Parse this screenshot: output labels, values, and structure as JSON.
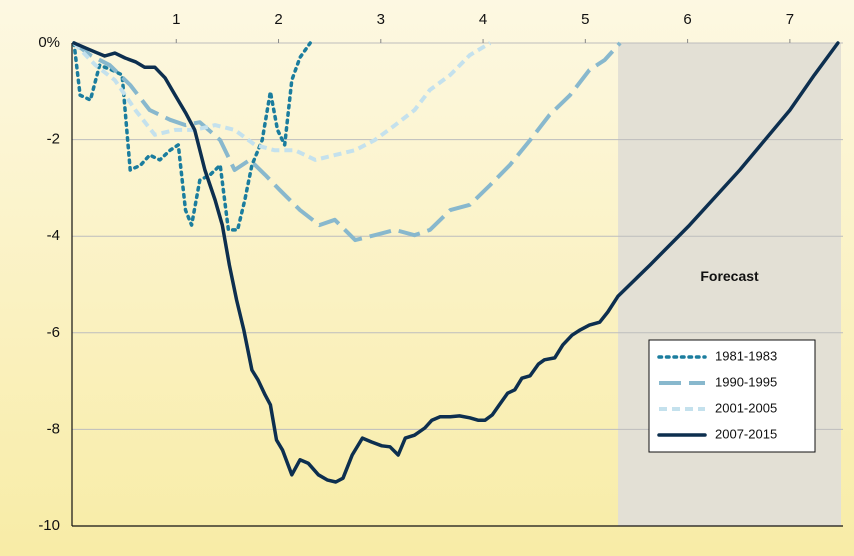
{
  "chart_data": {
    "type": "line",
    "xlim": [
      0,
      7.5
    ],
    "xticks": [
      1,
      2,
      3,
      4,
      5,
      6,
      7
    ],
    "ylim": [
      -10,
      0
    ],
    "yticks": [
      {
        "value": 0,
        "label": "0%"
      },
      -2,
      -4,
      -6,
      -8,
      -10
    ],
    "grid": true,
    "legend": "lower right",
    "forecast_label": "Forecast",
    "forecast_start": 5.32,
    "forecast_color": "#e3e0d5",
    "series": [
      {
        "name": "1981-1983",
        "color": "#1b7d9e",
        "style": "dotted",
        "x": [
          0,
          0.06,
          0.16,
          0.25,
          0.37,
          0.47,
          0.55,
          0.65,
          0.74,
          0.84,
          0.94,
          1.02,
          1.09,
          1.15,
          1.23,
          1.33,
          1.43,
          1.51,
          1.6,
          1.67,
          1.74,
          1.84,
          1.92,
          1.99,
          2.06,
          2.13,
          2.21,
          2.31
        ],
        "values": [
          0,
          -1.08,
          -1.18,
          -0.46,
          -0.56,
          -0.66,
          -2.63,
          -2.53,
          -2.32,
          -2.42,
          -2.22,
          -2.11,
          -3.46,
          -3.77,
          -2.84,
          -2.73,
          -2.53,
          -3.87,
          -3.87,
          -3.25,
          -2.53,
          -2.01,
          -1.01,
          -1.8,
          -2.11,
          -0.77,
          -0.3,
          0
        ]
      },
      {
        "name": "1990-1995",
        "color": "#88b8cd",
        "style": "long-dash",
        "x": [
          0,
          0.16,
          0.35,
          0.55,
          0.74,
          0.94,
          1.09,
          1.23,
          1.43,
          1.57,
          1.72,
          1.87,
          2.01,
          2.21,
          2.4,
          2.55,
          2.75,
          2.94,
          3.14,
          3.33,
          3.48,
          3.68,
          3.87,
          4.07,
          4.26,
          4.46,
          4.65,
          4.85,
          5.04,
          5.19,
          5.34
        ],
        "values": [
          0,
          -0.25,
          -0.46,
          -0.87,
          -1.39,
          -1.59,
          -1.7,
          -1.64,
          -2.01,
          -2.63,
          -2.42,
          -2.73,
          -3.04,
          -3.46,
          -3.77,
          -3.66,
          -4.08,
          -3.98,
          -3.87,
          -3.98,
          -3.87,
          -3.46,
          -3.35,
          -2.94,
          -2.53,
          -2.01,
          -1.49,
          -1.08,
          -0.56,
          -0.35,
          0
        ]
      },
      {
        "name": "2001-2005",
        "color": "#c4e1ed",
        "style": "short-dash",
        "x": [
          0,
          0.21,
          0.4,
          0.6,
          0.79,
          0.99,
          1.18,
          1.38,
          1.57,
          1.77,
          1.96,
          2.16,
          2.36,
          2.55,
          2.75,
          2.94,
          3.14,
          3.33,
          3.48,
          3.68,
          3.87,
          4.07
        ],
        "values": [
          0,
          -0.46,
          -0.77,
          -1.39,
          -1.9,
          -1.8,
          -1.8,
          -1.7,
          -1.8,
          -2.11,
          -2.22,
          -2.22,
          -2.42,
          -2.32,
          -2.22,
          -2.01,
          -1.7,
          -1.39,
          -0.97,
          -0.66,
          -0.25,
          0
        ]
      },
      {
        "name": "2007-2015",
        "color": "#0d2f4f",
        "style": "solid",
        "x": [
          0,
          0.11,
          0.21,
          0.3,
          0.4,
          0.5,
          0.6,
          0.69,
          0.79,
          0.89,
          0.99,
          1.09,
          1.18,
          1.28,
          1.38,
          1.45,
          1.52,
          1.59,
          1.66,
          1.74,
          1.8,
          1.87,
          1.92,
          1.98,
          2.04,
          2.13,
          2.21,
          2.29,
          2.39,
          2.48,
          2.56,
          2.63,
          2.72,
          2.82,
          2.91,
          3.01,
          3.09,
          3.17,
          3.24,
          3.33,
          3.43,
          3.5,
          3.58,
          3.68,
          3.77,
          3.87,
          3.95,
          4.02,
          4.09,
          4.16,
          4.24,
          4.31,
          4.38,
          4.46,
          4.54,
          4.6,
          4.7,
          4.78,
          4.87,
          4.95,
          5.04,
          5.14,
          5.22,
          5.32,
          5.63,
          6.02,
          6.51,
          7.0,
          7.24,
          7.47
        ],
        "values": [
          0,
          -0.1,
          -0.19,
          -0.27,
          -0.21,
          -0.31,
          -0.39,
          -0.5,
          -0.5,
          -0.72,
          -1.08,
          -1.44,
          -1.8,
          -2.63,
          -3.25,
          -3.77,
          -4.6,
          -5.32,
          -5.94,
          -6.77,
          -6.98,
          -7.29,
          -7.49,
          -8.22,
          -8.43,
          -8.94,
          -8.63,
          -8.7,
          -8.94,
          -9.05,
          -9.09,
          -9.01,
          -8.53,
          -8.18,
          -8.26,
          -8.34,
          -8.36,
          -8.53,
          -8.18,
          -8.12,
          -7.97,
          -7.81,
          -7.74,
          -7.74,
          -7.72,
          -7.76,
          -7.81,
          -7.81,
          -7.7,
          -7.49,
          -7.25,
          -7.18,
          -6.94,
          -6.89,
          -6.65,
          -6.56,
          -6.52,
          -6.25,
          -6.05,
          -5.94,
          -5.84,
          -5.78,
          -5.57,
          -5.24,
          -4.6,
          -3.77,
          -2.63,
          -1.39,
          -0.66,
          0
        ]
      }
    ]
  }
}
